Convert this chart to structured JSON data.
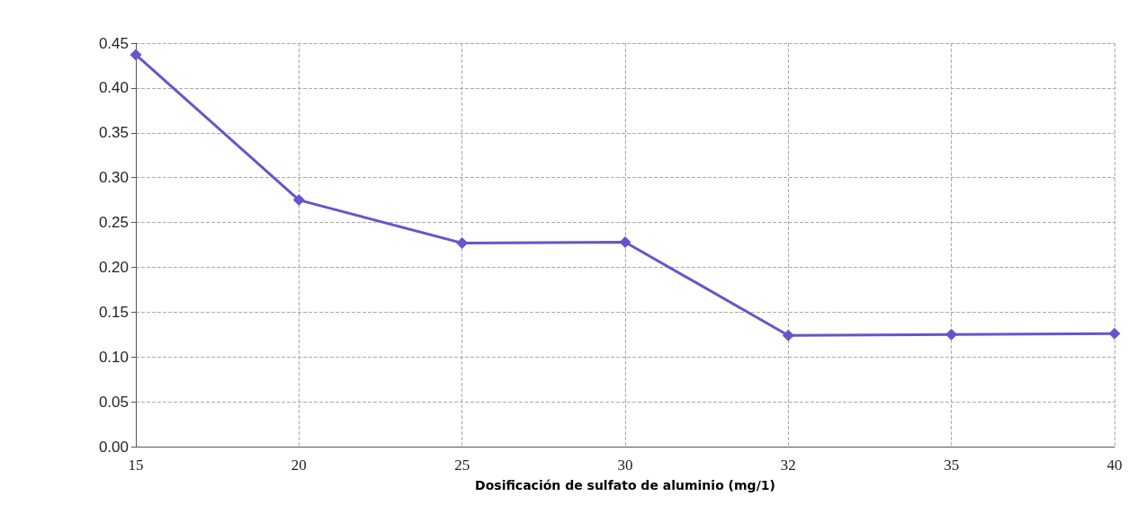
{
  "chart_data": {
    "type": "line",
    "xlabel": "Dosificación de sulfato de aluminio (mg/1)",
    "categories": [
      "15",
      "20",
      "25",
      "30",
      "32",
      "35",
      "40"
    ],
    "series": [
      {
        "color": "#6655cc",
        "values": [
          0.437,
          0.275,
          0.227,
          0.228,
          0.124,
          0.125,
          0.126
        ]
      }
    ],
    "ylim": [
      0,
      0.45
    ],
    "yticks": [
      {
        "value": 0,
        "label": "0.00"
      },
      0.05,
      {
        "value": 0.1,
        "label": "0.10"
      },
      0.15,
      {
        "value": 0.2,
        "label": "0.20"
      },
      0.25,
      {
        "value": 0.3,
        "label": "0.30"
      },
      0.35,
      {
        "value": 0.4,
        "label": "0.40"
      },
      0.45
    ],
    "grid": true,
    "marker": "diamond",
    "line_style": "solid"
  }
}
